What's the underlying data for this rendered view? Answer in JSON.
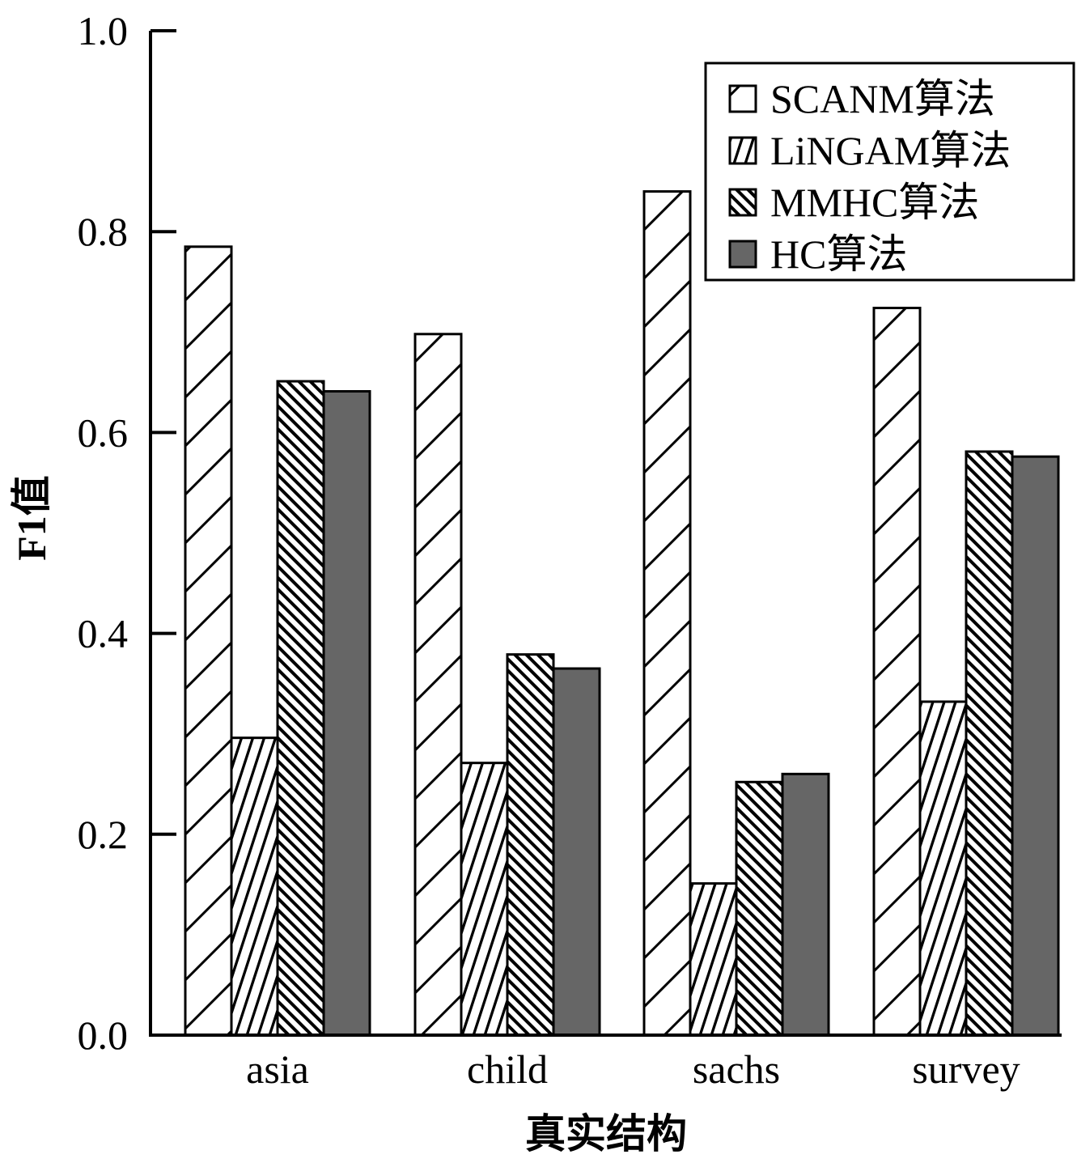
{
  "chart_data": {
    "type": "bar",
    "title": "",
    "xlabel": "真实结构",
    "ylabel": "F1值",
    "categories": [
      "asia",
      "child",
      "sachs",
      "survey"
    ],
    "ylim": [
      0.0,
      1.0
    ],
    "yticks": [
      "0.0",
      "0.2",
      "0.4",
      "0.6",
      "0.8",
      "1.0"
    ],
    "grid": false,
    "legend_position": "top-right",
    "series": [
      {
        "name": "SCANM算法",
        "values": [
          0.785,
          0.698,
          0.84,
          0.724
        ],
        "pattern": "wide-diagonal-hatch"
      },
      {
        "name": "LiNGAM算法",
        "values": [
          0.296,
          0.271,
          0.151,
          0.332
        ],
        "pattern": "dense-diagonal-hatch"
      },
      {
        "name": "MMHC算法",
        "values": [
          0.651,
          0.379,
          0.252,
          0.581
        ],
        "pattern": "dense-back-diagonal-hatch"
      },
      {
        "name": "HC算法",
        "values": [
          0.641,
          0.365,
          0.26,
          0.576
        ],
        "pattern": "solid",
        "color": "#666666"
      }
    ]
  }
}
